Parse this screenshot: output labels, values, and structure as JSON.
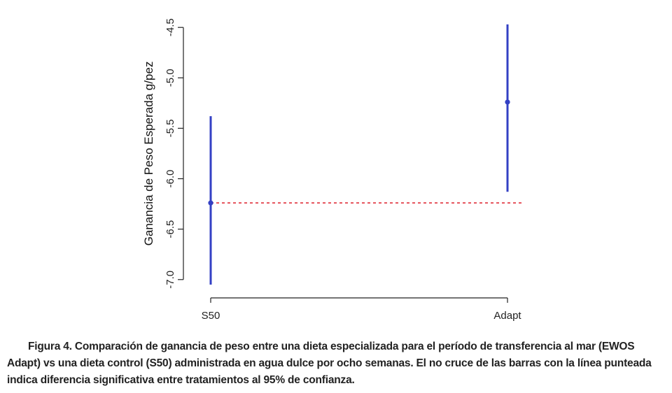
{
  "chart_data": {
    "type": "errorbar",
    "categories": [
      "S50",
      "Adapt"
    ],
    "estimates": [
      -6.24,
      -5.24
    ],
    "lower": [
      -7.05,
      -6.13
    ],
    "upper": [
      -5.38,
      -4.47
    ],
    "reference_line": -6.24,
    "ylabel": "Ganancia de Peso Esperada g/pez",
    "ylim": [
      -7.05,
      -4.45
    ],
    "yticks": [
      "-7.0",
      "-6.5",
      "-6.0",
      "-5.5",
      "-5.0",
      "-4.5"
    ],
    "ytick_values": [
      -7.0,
      -6.5,
      -6.0,
      -5.5,
      -5.0,
      -4.5
    ],
    "grid": false,
    "colors": {
      "series": "#3340c4",
      "reference": "#e0303a",
      "axis": "#222222"
    }
  },
  "caption": "Figura 4. Comparación de ganancia de peso entre una dieta especializada para el período de transferencia al mar (EWOS Adapt) vs una dieta control (S50) administrada en agua dulce por ocho semanas. El no cruce de las barras con la línea punteada indica diferencia significativa entre tratamientos al 95% de confianza."
}
